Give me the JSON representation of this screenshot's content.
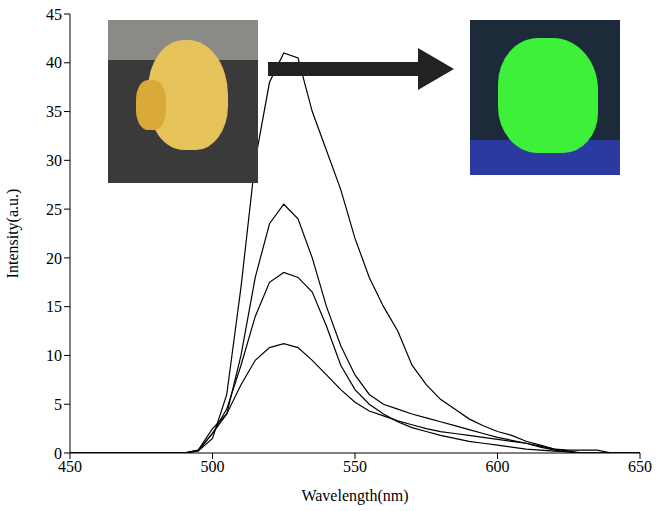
{
  "chart_data": {
    "type": "line",
    "x_label": "Wavelength(nm)",
    "y_label": "Intensity(a.u.)",
    "x": [
      450,
      455,
      460,
      465,
      470,
      475,
      480,
      485,
      490,
      495,
      500,
      505,
      510,
      515,
      520,
      525,
      530,
      535,
      540,
      545,
      550,
      555,
      560,
      565,
      570,
      575,
      580,
      585,
      590,
      595,
      600,
      605,
      610,
      615,
      620,
      625,
      630,
      635,
      640,
      645,
      650
    ],
    "series": [
      {
        "color": "#000000",
        "values": [
          0,
          0,
          0,
          0,
          0,
          0,
          0,
          0,
          0,
          0.2,
          1.5,
          6,
          17,
          30,
          38,
          41,
          40.5,
          35,
          31,
          27,
          22,
          18,
          15,
          12.5,
          9,
          7,
          5.5,
          4.5,
          3.5,
          2.8,
          2.2,
          1.8,
          1.2,
          0.8,
          0.4,
          0.3,
          0.3,
          0.3,
          0,
          0,
          0
        ]
      },
      {
        "color": "#000000",
        "values": [
          0,
          0,
          0,
          0,
          0,
          0,
          0,
          0,
          0,
          0.2,
          2,
          4,
          10,
          18,
          23.5,
          25.5,
          24,
          20,
          15,
          11,
          8,
          6,
          5,
          4.5,
          4,
          3.6,
          3.2,
          2.8,
          2.4,
          2,
          1.6,
          1.3,
          1,
          0.7,
          0.4,
          0.2,
          0,
          0,
          0,
          0,
          0
        ]
      },
      {
        "color": "#000000",
        "values": [
          0,
          0,
          0,
          0,
          0,
          0,
          0,
          0,
          0,
          0.3,
          2,
          4.5,
          9,
          14,
          17.5,
          18.5,
          18,
          16.5,
          13,
          9,
          6.5,
          5,
          4,
          3.2,
          2.6,
          2.2,
          1.8,
          1.5,
          1.2,
          1,
          0.8,
          0.6,
          0.4,
          0.3,
          0.2,
          0.1,
          0,
          0,
          0,
          0,
          0
        ]
      },
      {
        "color": "#000000",
        "values": [
          0,
          0,
          0,
          0,
          0,
          0,
          0,
          0,
          0,
          0.3,
          2.5,
          4,
          7,
          9.5,
          10.8,
          11.2,
          10.8,
          9.5,
          8,
          6.5,
          5.2,
          4.3,
          3.8,
          3.3,
          2.9,
          2.5,
          2.2,
          2,
          1.8,
          1.6,
          1.4,
          1.2,
          1,
          0.6,
          0.3,
          0.1,
          0,
          0,
          0,
          0,
          0
        ]
      }
    ],
    "xlim": [
      450,
      650
    ],
    "xticks": [
      450,
      500,
      550,
      600,
      650
    ],
    "ylim": [
      0,
      45
    ],
    "yticks": [
      0,
      5,
      10,
      15,
      20,
      25,
      30,
      35,
      40,
      45
    ],
    "grid": false
  }
}
